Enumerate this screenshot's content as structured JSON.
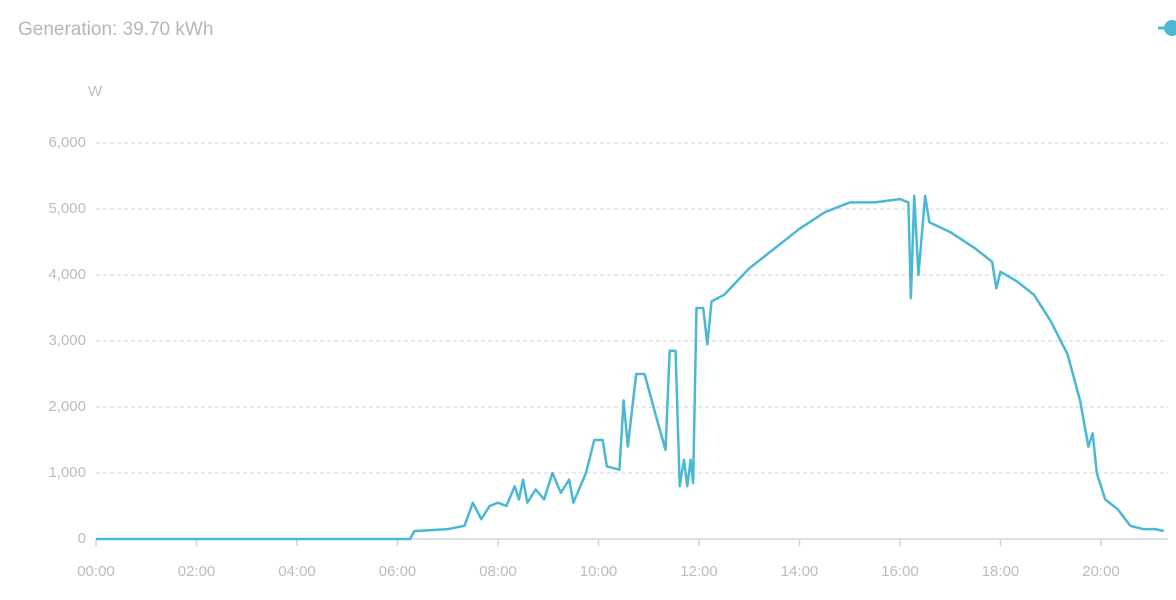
{
  "chart_data": {
    "type": "line",
    "title": "Generation: 39.70 kWh",
    "y_label": "W",
    "x": [
      "00:00",
      "06:15",
      "06:20",
      "07:00",
      "07:20",
      "07:30",
      "07:40",
      "07:50",
      "08:00",
      "08:10",
      "08:20",
      "08:25",
      "08:30",
      "08:35",
      "08:45",
      "08:55",
      "09:05",
      "09:15",
      "09:25",
      "09:30",
      "09:45",
      "09:55",
      "10:05",
      "10:10",
      "10:25",
      "10:30",
      "10:35",
      "10:45",
      "10:55",
      "11:10",
      "11:20",
      "11:25",
      "11:32",
      "11:37",
      "11:42",
      "11:46",
      "11:50",
      "11:53",
      "11:57",
      "12:05",
      "12:10",
      "12:15",
      "12:30",
      "12:45",
      "13:00",
      "13:30",
      "14:00",
      "14:30",
      "15:00",
      "15:30",
      "16:00",
      "16:10",
      "16:13",
      "16:17",
      "16:22",
      "16:30",
      "16:35",
      "17:00",
      "17:30",
      "17:50",
      "17:55",
      "18:00",
      "18:20",
      "18:40",
      "19:00",
      "19:20",
      "19:35",
      "19:45",
      "19:50",
      "19:55",
      "20:05",
      "20:20",
      "20:35",
      "20:50",
      "21:05",
      "21:15"
    ],
    "series": [
      {
        "name": "Generation",
        "color": "#4bb8d3",
        "values": [
          0,
          0,
          120,
          150,
          200,
          550,
          300,
          500,
          550,
          500,
          800,
          600,
          900,
          550,
          750,
          600,
          1000,
          700,
          900,
          550,
          1000,
          1500,
          1500,
          1100,
          1050,
          2100,
          1400,
          2500,
          2500,
          1800,
          1350,
          2850,
          2850,
          800,
          1200,
          800,
          1200,
          850,
          3500,
          3500,
          2950,
          3600,
          3700,
          3900,
          4100,
          4400,
          4700,
          4950,
          5100,
          5100,
          5150,
          5100,
          3650,
          5200,
          4000,
          5200,
          4800,
          4650,
          4400,
          4200,
          3800,
          4050,
          3900,
          3700,
          3300,
          2800,
          2100,
          1400,
          1600,
          1000,
          600,
          450,
          200,
          150,
          150,
          120
        ]
      }
    ],
    "xlim": [
      "00:00",
      "21:20"
    ],
    "xticks": [
      "00:00",
      "02:00",
      "04:00",
      "06:00",
      "08:00",
      "10:00",
      "12:00",
      "14:00",
      "16:00",
      "18:00",
      "20:00"
    ],
    "ylim": [
      0,
      6000
    ],
    "yticks": [
      0,
      {
        "value": 1000,
        "label": "1,000"
      },
      {
        "value": 2000,
        "label": "2,000"
      },
      {
        "value": 3000,
        "label": "3,000"
      },
      {
        "value": 4000,
        "label": "4,000"
      },
      {
        "value": 5000,
        "label": "5,000"
      },
      {
        "value": 6000,
        "label": "6,000"
      }
    ],
    "grid": true
  }
}
